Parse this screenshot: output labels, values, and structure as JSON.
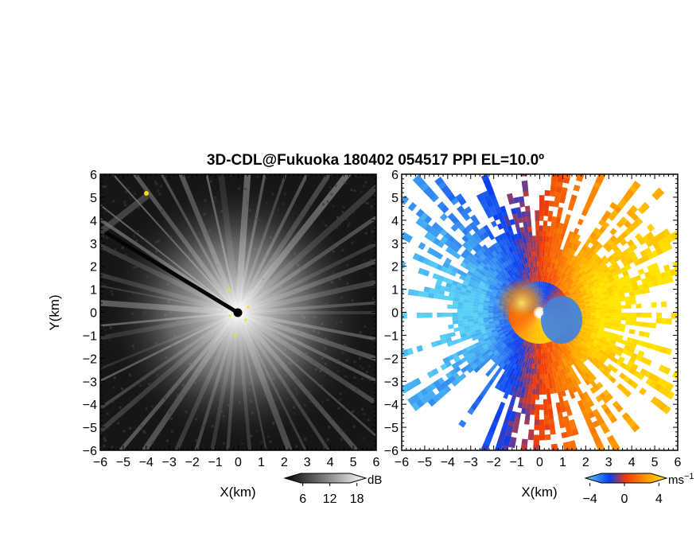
{
  "chart_data": {
    "type": "heatmap",
    "title": "3D-CDL@Fukuoka 180402 054517 PPI EL=10.0º",
    "panels": [
      {
        "name": "intensity",
        "xlabel": "X(km)",
        "ylabel": "Y(km)",
        "xlim": [
          -6,
          6
        ],
        "ylim": [
          -6,
          6
        ],
        "xticks": [
          "−6",
          "−5",
          "−4",
          "−3",
          "−2",
          "−1",
          "0",
          "1",
          "2",
          "3",
          "4",
          "5",
          "6"
        ],
        "yticks": [
          "6",
          "5",
          "4",
          "3",
          "2",
          "1",
          "0",
          "−1",
          "−2",
          "−3",
          "−4",
          "−5",
          "−6"
        ],
        "colorbar": {
          "label": "dB",
          "ticks": [
            "6",
            "12",
            "18"
          ],
          "tick_values": [
            6,
            12,
            18
          ],
          "range": [
            2,
            20
          ],
          "colormap": "grayscale"
        }
      },
      {
        "name": "radial-velocity",
        "xlabel": "X(km)",
        "xlim": [
          -6,
          6
        ],
        "ylim": [
          -6,
          6
        ],
        "xticks": [
          "−6",
          "−5",
          "−4",
          "−3",
          "−2",
          "−1",
          "0",
          "1",
          "2",
          "3",
          "4",
          "5",
          "6"
        ],
        "yticks": [
          "6",
          "5",
          "4",
          "3",
          "2",
          "1",
          "0",
          "−1",
          "−2",
          "−3",
          "−4",
          "−5",
          "−6"
        ],
        "colorbar": {
          "label": "ms",
          "label_superscript": "−1",
          "ticks": [
            "−4",
            "0",
            "4"
          ],
          "tick_values": [
            -4,
            0,
            4
          ],
          "range": [
            -6,
            6
          ],
          "colormap": "blue-red-yellow"
        }
      }
    ],
    "radar_center": [
      0,
      0
    ],
    "grid": false
  },
  "colors": {
    "background": "#ffffff",
    "axes": "#000000",
    "low_velocity": "#0a3cf0",
    "mid_velocity": "#f03c0a",
    "high_velocity": "#ffd200",
    "marker": "#f0e020"
  }
}
